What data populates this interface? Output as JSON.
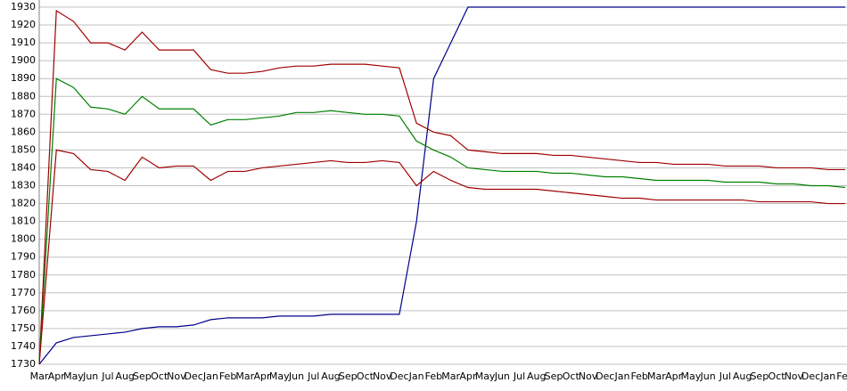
{
  "chart_data": {
    "type": "line",
    "categories": [
      "Mar",
      "Apr",
      "May",
      "Jun",
      "Jul",
      "Aug",
      "Sep",
      "Oct",
      "Nov",
      "Dec",
      "Jan",
      "Feb",
      "Mar",
      "Apr",
      "May",
      "Jun",
      "Jul",
      "Aug",
      "Sep",
      "Oct",
      "Nov",
      "Dec",
      "Jan",
      "Feb",
      "Mar",
      "Apr",
      "May",
      "Jun",
      "Jul",
      "Aug",
      "Sep",
      "Oct",
      "Nov",
      "Dec",
      "Jan",
      "Feb",
      "Mar",
      "Apr",
      "May",
      "Jun",
      "Jul",
      "Aug",
      "Sep",
      "Oct",
      "Nov",
      "Dec",
      "Jan",
      "Feb"
    ],
    "series": [
      {
        "color": "#00008b",
        "values": [
          1730,
          1742,
          1745,
          1746,
          1747,
          1748,
          1750,
          1751,
          1751,
          1752,
          1755,
          1756,
          1756,
          1756,
          1757,
          1757,
          1757,
          1758,
          1758,
          1758,
          1758,
          1758,
          1810,
          1890,
          1910,
          1930,
          1930,
          1930,
          1930,
          1930,
          1930,
          1930,
          1930,
          1930,
          1930,
          1930,
          1930,
          1930,
          1930,
          1930,
          1930,
          1930,
          1930,
          1930,
          1930,
          1930,
          1930,
          1930
        ]
      },
      {
        "color": "#a00000",
        "values": [
          1730,
          1928,
          1922,
          1910,
          1910,
          1906,
          1916,
          1906,
          1906,
          1906,
          1895,
          1893,
          1893,
          1894,
          1896,
          1897,
          1897,
          1898,
          1898,
          1898,
          1897,
          1896,
          1865,
          1860,
          1858,
          1850,
          1849,
          1848,
          1848,
          1848,
          1847,
          1847,
          1846,
          1845,
          1844,
          1843,
          1843,
          1842,
          1842,
          1842,
          1841,
          1841,
          1841,
          1840,
          1840,
          1840,
          1839,
          1839
        ]
      },
      {
        "color": "#008000",
        "values": [
          1730,
          1890,
          1885,
          1874,
          1873,
          1870,
          1880,
          1873,
          1873,
          1873,
          1864,
          1867,
          1867,
          1868,
          1869,
          1871,
          1871,
          1872,
          1871,
          1870,
          1870,
          1869,
          1855,
          1850,
          1846,
          1840,
          1839,
          1838,
          1838,
          1838,
          1837,
          1837,
          1836,
          1835,
          1835,
          1834,
          1833,
          1833,
          1833,
          1833,
          1832,
          1832,
          1832,
          1831,
          1831,
          1830,
          1830,
          1829
        ]
      },
      {
        "color": "#a00000",
        "values": [
          1730,
          1850,
          1848,
          1839,
          1838,
          1833,
          1846,
          1840,
          1841,
          1841,
          1833,
          1838,
          1838,
          1840,
          1841,
          1842,
          1843,
          1844,
          1843,
          1843,
          1844,
          1843,
          1830,
          1838,
          1833,
          1829,
          1828,
          1828,
          1828,
          1828,
          1827,
          1826,
          1825,
          1824,
          1823,
          1823,
          1822,
          1822,
          1822,
          1822,
          1822,
          1822,
          1821,
          1821,
          1821,
          1821,
          1820,
          1820
        ]
      }
    ],
    "ylim": [
      1730,
      1930
    ],
    "yticks": [
      1730,
      1740,
      1750,
      1760,
      1770,
      1780,
      1790,
      1800,
      1810,
      1820,
      1830,
      1840,
      1850,
      1860,
      1870,
      1880,
      1890,
      1900,
      1910,
      1920,
      1930
    ],
    "grid": true
  }
}
